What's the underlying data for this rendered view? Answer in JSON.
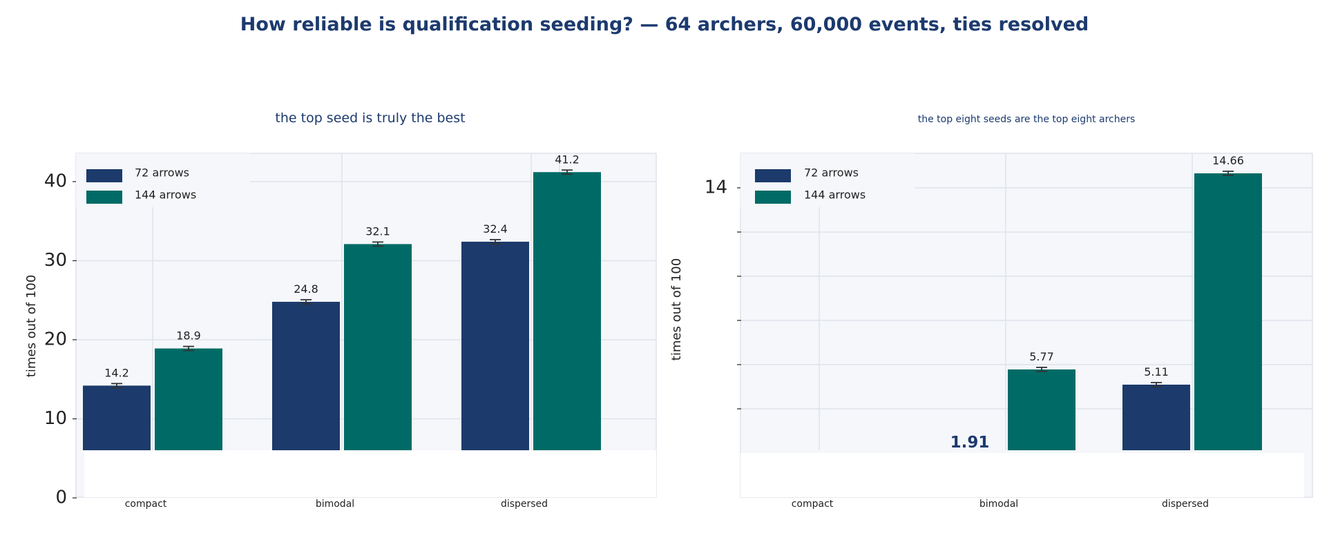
{
  "title": "How reliable is qualification seeding? — 64 archers, 60,000 events, ties resolved",
  "colors": {
    "series_72": "#1c3a6b",
    "series_144": "#006b66",
    "plot_bg": "#f5f7fb",
    "grid": "#dfe3ea",
    "title": "#1c3a6e"
  },
  "chart_data": [
    {
      "type": "bar",
      "title": "the top seed is truly the best",
      "ylabel": "times out of 100",
      "categories": [
        "compact",
        "bimodal",
        "dispersed"
      ],
      "series": [
        {
          "name": "72 arrows",
          "values": [
            14.2,
            24.8,
            32.4
          ],
          "labels": [
            "14.2",
            "24.8",
            "32.4"
          ]
        },
        {
          "name": "144 arrows",
          "values": [
            18.9,
            32.1,
            41.2
          ],
          "labels": [
            "18.9",
            "32.1",
            "41.2"
          ]
        }
      ],
      "yticks": [
        0,
        10,
        20,
        30,
        40
      ],
      "ylim": [
        0,
        44
      ],
      "grid": true,
      "legend": "top-left"
    },
    {
      "type": "bar",
      "title": "the top eight seeds are the top eight archers",
      "ylabel": "times out of 100",
      "categories": [
        "compact",
        "bimodal",
        "dispersed"
      ],
      "series": [
        {
          "name": "72 arrows",
          "values": [
            null,
            1.91,
            5.11
          ],
          "labels": [
            "",
            "1.91",
            "5.11"
          ]
        },
        {
          "name": "144 arrows",
          "values": [
            null,
            5.77,
            14.66
          ],
          "labels": [
            "",
            "5.77",
            "14.66"
          ]
        }
      ],
      "yticks": [
        14
      ],
      "ylim": [
        0,
        15.5
      ],
      "grid": true,
      "legend": "top-left"
    }
  ]
}
